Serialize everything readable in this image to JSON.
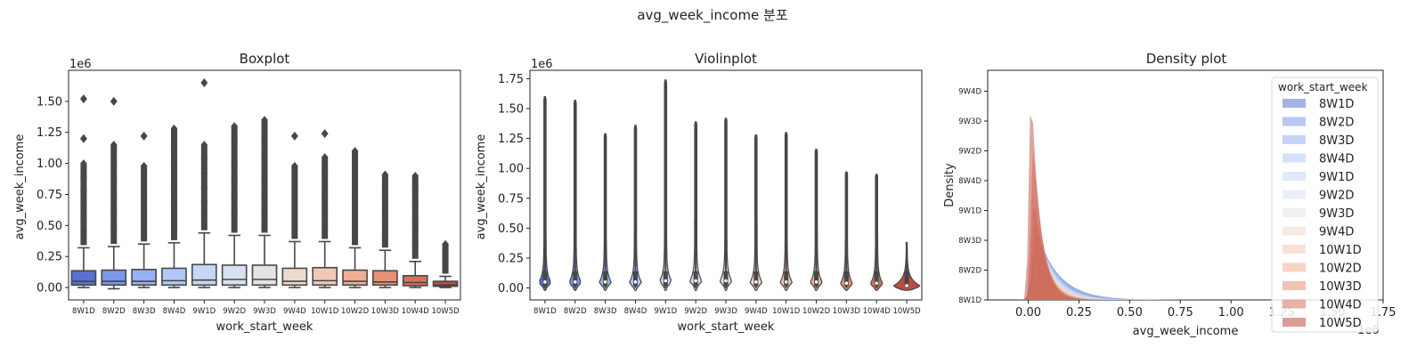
{
  "figure": {
    "suptitle": "avg_week_income 분포"
  },
  "categories": [
    "8W1D",
    "8W2D",
    "8W3D",
    "8W4D",
    "9W1D",
    "9W2D",
    "9W3D",
    "9W4D",
    "10W1D",
    "10W2D",
    "10W3D",
    "10W4D",
    "10W5D"
  ],
  "colors": [
    "#5a72cf",
    "#7b97ea",
    "#97b1f4",
    "#b2c8f8",
    "#c7d6f5",
    "#d9e1f0",
    "#e4e3e2",
    "#eed9cf",
    "#f2c8b5",
    "#efaf94",
    "#e59277",
    "#d5735f",
    "#bd4d42"
  ],
  "chart_data": [
    {
      "type": "box",
      "title": "Boxplot",
      "xlabel": "work_start_week",
      "ylabel": "avg_week_income",
      "offset_text": "1e6",
      "ylim": [
        -0.1,
        1.75
      ],
      "yticks": [
        "0.00",
        "0.25",
        "0.50",
        "0.75",
        "1.00",
        "1.25",
        "1.50"
      ],
      "ytick_values": [
        0,
        0.25,
        0.5,
        0.75,
        1.0,
        1.25,
        1.5
      ],
      "boxes": [
        {
          "q1": 0.02,
          "median": 0.05,
          "q3": 0.135,
          "wlo": 0.0,
          "whi": 0.32,
          "dense_to": 1.0,
          "outliers": [
            1.2,
            1.52
          ]
        },
        {
          "q1": 0.02,
          "median": 0.05,
          "q3": 0.14,
          "wlo": -0.01,
          "whi": 0.33,
          "dense_to": 1.15,
          "outliers": [
            1.5
          ]
        },
        {
          "q1": 0.02,
          "median": 0.05,
          "q3": 0.145,
          "wlo": 0.0,
          "whi": 0.35,
          "dense_to": 0.98,
          "outliers": [
            1.22
          ]
        },
        {
          "q1": 0.02,
          "median": 0.055,
          "q3": 0.155,
          "wlo": 0.0,
          "whi": 0.36,
          "dense_to": 1.28,
          "outliers": []
        },
        {
          "q1": 0.02,
          "median": 0.06,
          "q3": 0.185,
          "wlo": 0.0,
          "whi": 0.44,
          "dense_to": 1.15,
          "outliers": [
            1.65
          ]
        },
        {
          "q1": 0.02,
          "median": 0.065,
          "q3": 0.18,
          "wlo": 0.0,
          "whi": 0.42,
          "dense_to": 1.3,
          "outliers": []
        },
        {
          "q1": 0.02,
          "median": 0.065,
          "q3": 0.18,
          "wlo": 0.0,
          "whi": 0.42,
          "dense_to": 1.35,
          "outliers": []
        },
        {
          "q1": 0.02,
          "median": 0.05,
          "q3": 0.155,
          "wlo": 0.0,
          "whi": 0.37,
          "dense_to": 0.98,
          "outliers": [
            1.22
          ]
        },
        {
          "q1": 0.02,
          "median": 0.055,
          "q3": 0.16,
          "wlo": 0.0,
          "whi": 0.37,
          "dense_to": 1.05,
          "outliers": [
            1.24
          ]
        },
        {
          "q1": 0.02,
          "median": 0.05,
          "q3": 0.14,
          "wlo": 0.0,
          "whi": 0.32,
          "dense_to": 1.1,
          "outliers": []
        },
        {
          "q1": 0.02,
          "median": 0.045,
          "q3": 0.135,
          "wlo": 0.0,
          "whi": 0.3,
          "dense_to": 0.91,
          "outliers": []
        },
        {
          "q1": 0.015,
          "median": 0.04,
          "q3": 0.095,
          "wlo": 0.0,
          "whi": 0.21,
          "dense_to": 0.9,
          "outliers": []
        },
        {
          "q1": 0.01,
          "median": 0.02,
          "q3": 0.05,
          "wlo": 0.0,
          "whi": 0.09,
          "dense_to": 0.35,
          "outliers": []
        }
      ]
    },
    {
      "type": "violin",
      "title": "Violinplot",
      "xlabel": "work_start_week",
      "ylabel": "avg_week_income",
      "offset_text": "1e6",
      "ylim": [
        -0.1,
        1.82
      ],
      "yticks": [
        "0.00",
        "0.25",
        "0.50",
        "0.75",
        "1.00",
        "1.25",
        "1.50",
        "1.75"
      ],
      "ytick_values": [
        0,
        0.25,
        0.5,
        0.75,
        1.0,
        1.25,
        1.5,
        1.75
      ],
      "violins": [
        {
          "max": 1.6,
          "median": 0.05
        },
        {
          "max": 1.57,
          "median": 0.05
        },
        {
          "max": 1.29,
          "median": 0.05
        },
        {
          "max": 1.36,
          "median": 0.05
        },
        {
          "max": 1.74,
          "median": 0.06
        },
        {
          "max": 1.39,
          "median": 0.06
        },
        {
          "max": 1.42,
          "median": 0.06
        },
        {
          "max": 1.28,
          "median": 0.05
        },
        {
          "max": 1.3,
          "median": 0.05
        },
        {
          "max": 1.16,
          "median": 0.05
        },
        {
          "max": 0.97,
          "median": 0.04
        },
        {
          "max": 0.95,
          "median": 0.04
        },
        {
          "max": 0.38,
          "median": 0.02
        }
      ]
    },
    {
      "type": "area",
      "title": "Density plot",
      "xlabel": "avg_week_income",
      "ylabel": "Density",
      "offset_text": "1e6",
      "xlim": [
        -0.2,
        1.75
      ],
      "xticks": [
        "0.00",
        "0.25",
        "0.50",
        "0.75",
        "1.00",
        "1.25",
        "1.50",
        "1.75"
      ],
      "xtick_values": [
        0,
        0.25,
        0.5,
        0.75,
        1.0,
        1.25,
        1.5,
        1.75
      ],
      "ytick_labels": [
        "8W1D",
        "8W2D",
        "8W3D",
        "9W1D",
        "8W4D",
        "9W2D",
        "9W3D",
        "9W4D"
      ],
      "legend": {
        "title": "work_start_week",
        "placement": "top-right"
      },
      "peaks": [
        0.3,
        0.31,
        0.32,
        0.3,
        0.3,
        0.31,
        0.31,
        0.33,
        0.35,
        0.38,
        0.48,
        0.7,
        0.98
      ],
      "peak_x": [
        0.045,
        0.045,
        0.045,
        0.05,
        0.05,
        0.05,
        0.05,
        0.045,
        0.04,
        0.035,
        0.03,
        0.025,
        0.015
      ]
    }
  ]
}
